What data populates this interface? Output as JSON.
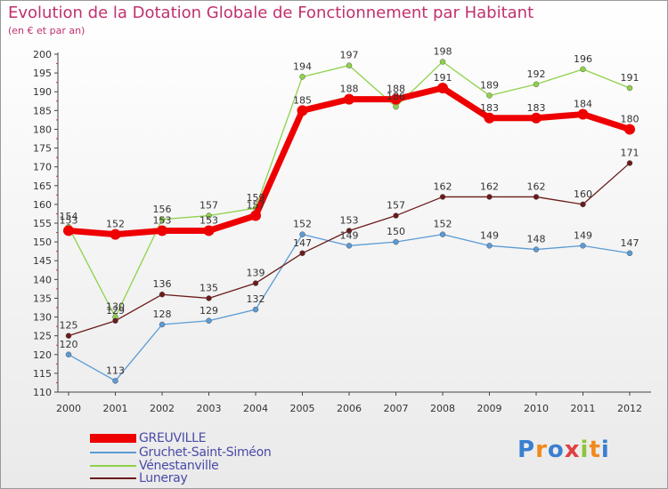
{
  "colors": {
    "title": "#c0306e",
    "legend_text": "#4a4aa8"
  },
  "chart_data": {
    "type": "line",
    "title": "Evolution de la Dotation Globale de Fonctionnement par Habitant",
    "subtitle": "(en € et par an)",
    "xlabel": "",
    "ylabel": "",
    "categories": [
      "2000",
      "2001",
      "2002",
      "2003",
      "2004",
      "2005",
      "2006",
      "2007",
      "2008",
      "2009",
      "2010",
      "2011",
      "2012"
    ],
    "ylim": [
      110,
      200
    ],
    "ytick_step": 5,
    "grid": false,
    "legend_position": "bottom-left",
    "series": [
      {
        "name": "Vénestanville",
        "color": "#8fd24a",
        "values": [
          154,
          130,
          156,
          157,
          159,
          194,
          197,
          186,
          198,
          189,
          192,
          196,
          191
        ]
      },
      {
        "name": "Gruchet-Saint-Siméon",
        "color": "#5b9bd5",
        "values": [
          120,
          113,
          128,
          129,
          132,
          152,
          149,
          150,
          152,
          149,
          148,
          149,
          147
        ]
      },
      {
        "name": "Luneray",
        "color": "#6b1a1a",
        "values": [
          125,
          129,
          136,
          135,
          139,
          147,
          153,
          157,
          162,
          162,
          162,
          160,
          171
        ]
      },
      {
        "name": "GREUVILLE",
        "color": "#ee0000",
        "values": [
          153,
          152,
          153,
          153,
          157,
          185,
          188,
          188,
          191,
          183,
          183,
          184,
          180
        ]
      }
    ],
    "value_labels": {
      "Vénestanville": [
        "154",
        "130",
        "156",
        "157",
        "159",
        "194",
        "197",
        "186",
        "198",
        "189",
        "192",
        "196",
        "191"
      ],
      "Gruchet-Saint-Siméon": [
        "120",
        "113",
        "128",
        "129",
        "132",
        "152",
        "149",
        "150",
        "152",
        "149",
        "148",
        "149",
        "147"
      ],
      "Luneray": [
        "125",
        "129",
        "136",
        "135",
        "139",
        "147",
        "153",
        "157",
        "162",
        "162",
        "162",
        "160",
        "171"
      ],
      "GREUVILLE": [
        "153",
        "152",
        "153",
        "153",
        "157",
        "185",
        "188",
        "188",
        "191",
        "183",
        "183",
        "184",
        "180"
      ]
    }
  },
  "legend": [
    {
      "label": "GREUVILLE",
      "color": "#ee0000"
    },
    {
      "label": "Gruchet-Saint-Siméon",
      "color": "#5b9bd5"
    },
    {
      "label": "Vénestanville",
      "color": "#8fd24a"
    },
    {
      "label": "Luneray",
      "color": "#6b1a1a"
    }
  ],
  "logo": {
    "letters": [
      "P",
      "r",
      "o",
      "x",
      "i",
      "t",
      "i"
    ],
    "colors": [
      "#3a7fd0",
      "#f08a1c",
      "#3a7fd0",
      "#e04040",
      "#8fc43a",
      "#f08a1c",
      "#3a7fd0"
    ]
  }
}
